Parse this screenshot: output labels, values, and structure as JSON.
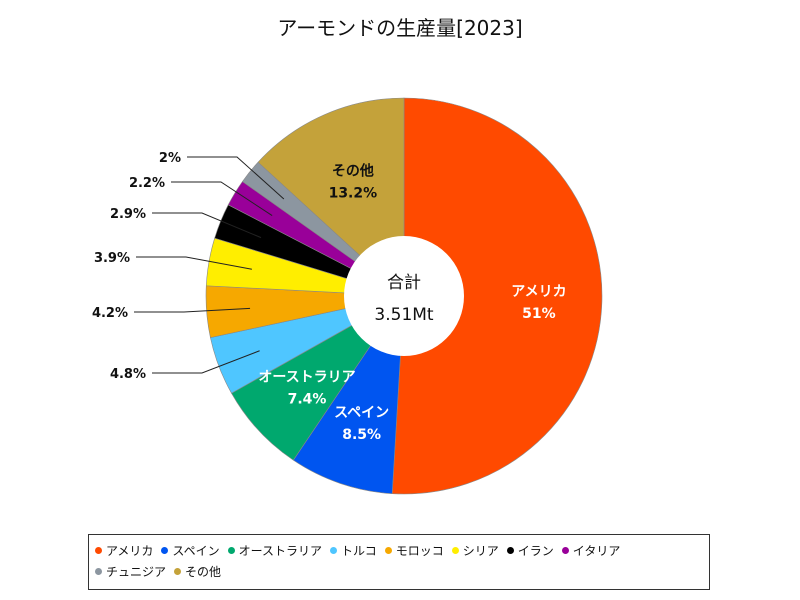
{
  "chart_data": {
    "type": "pie",
    "title": "アーモンドの生産量[2023]",
    "center_label": {
      "line1": "合計",
      "line2": "3.51Mt"
    },
    "series": [
      {
        "name": "アメリカ",
        "value": 51,
        "label": "51%",
        "color": "#FF4A00"
      },
      {
        "name": "スペイン",
        "value": 8.5,
        "label": "8.5%",
        "color": "#0055F0"
      },
      {
        "name": "オーストラリア",
        "value": 7.4,
        "label": "7.4%",
        "color": "#00A86E"
      },
      {
        "name": "トルコ",
        "value": 4.8,
        "label": "4.8%",
        "color": "#4FC6FF"
      },
      {
        "name": "モロッコ",
        "value": 4.2,
        "label": "4.2%",
        "color": "#F6A800"
      },
      {
        "name": "シリア",
        "value": 3.9,
        "label": "3.9%",
        "color": "#FFEE00"
      },
      {
        "name": "イラン",
        "value": 2.9,
        "label": "2.9%",
        "color": "#000000"
      },
      {
        "name": "イタリア",
        "value": 2.2,
        "label": "2.2%",
        "color": "#990099"
      },
      {
        "name": "チュニジア",
        "value": 2,
        "label": "2%",
        "color": "#8C96A0"
      },
      {
        "name": "その他",
        "value": 13.2,
        "label": "13.2%",
        "color": "#C4A23A"
      }
    ],
    "legend_position": "bottom"
  }
}
